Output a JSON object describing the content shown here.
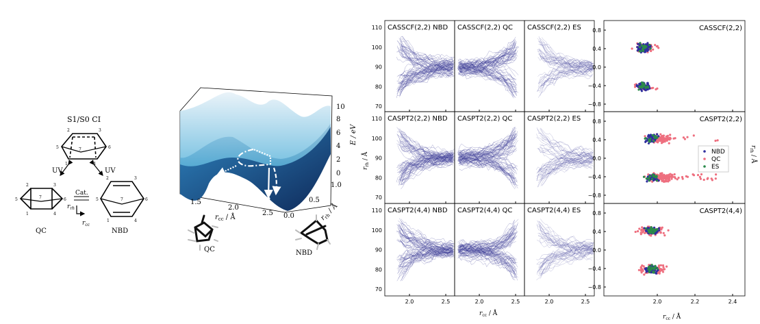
{
  "scheme": {
    "ci_label": "S1/S0 CI",
    "uv_left": "UV",
    "uv_right": "UV",
    "cat": "Cat.",
    "qc_label": "QC",
    "nbd_label": "NBD",
    "r_rh": "r",
    "r_rh_sub": "rh",
    "r_cc": "r",
    "r_cc_sub": "cc",
    "atom_numbers": [
      "1",
      "2",
      "3",
      "4",
      "5",
      "6",
      "7"
    ]
  },
  "surface": {
    "z_label": "E / eV",
    "z_ticks": [
      "0",
      "2",
      "4",
      "6",
      "8",
      "10"
    ],
    "x_label": "r",
    "x_label_sub": "cc",
    "x_unit": " / Å",
    "x_ticks": [
      "1.5",
      "2.0",
      "2.5"
    ],
    "y_label": "r",
    "y_label_sub": "rh",
    "y_unit": " / Å",
    "y_ticks": [
      "0.0",
      "0.5",
      "1.0"
    ],
    "qc_label": "QC",
    "nbd_label": "NBD",
    "colors": {
      "upper": "#a9d3ea",
      "lower": "#1f5f9a"
    }
  },
  "trajectories": {
    "panels": [
      [
        "CASSCF(2,2) NBD",
        "CASSCF(2,2) QC",
        "CASSCF(2,2) ES"
      ],
      [
        "CASPT2(2,2) NBD",
        "CASPT2(2,2) QC",
        "CASPT2(2,2) ES"
      ],
      [
        "CASPT2(4,4) NBD",
        "CASPT2(4,4) QC",
        "CASPT2(4,4) ES"
      ]
    ],
    "y_ticks": [
      "110",
      "100",
      "90",
      "80",
      "70"
    ],
    "x_ticks": [
      "2.0",
      "2.5"
    ],
    "y_label": "r",
    "y_label_sub": "rh",
    "y_unit": " / Å",
    "x_label": "r",
    "x_label_sub": "cc",
    "x_unit": " / Å",
    "line_color": "#3a3a95"
  },
  "scatter": {
    "panels": [
      "CASSCF(2,2)",
      "CASPT2(2,2)",
      "CASPT2(4,4)"
    ],
    "y_ticks": [
      "0.8",
      "0.4",
      "0.0",
      "−0.4",
      "−0.8"
    ],
    "x_ticks": [
      "2.0",
      "2.2",
      "2.4"
    ],
    "y_label": "r",
    "y_label_sub": "rh",
    "y_unit": " / Å",
    "x_label": "r",
    "x_label_sub": "cc",
    "x_unit": " / Å",
    "legend": [
      {
        "name": "NBD",
        "color": "#2f2f9e"
      },
      {
        "name": "QC",
        "color": "#ee6f7f"
      },
      {
        "name": "ES",
        "color": "#2a8a4a"
      }
    ]
  }
}
